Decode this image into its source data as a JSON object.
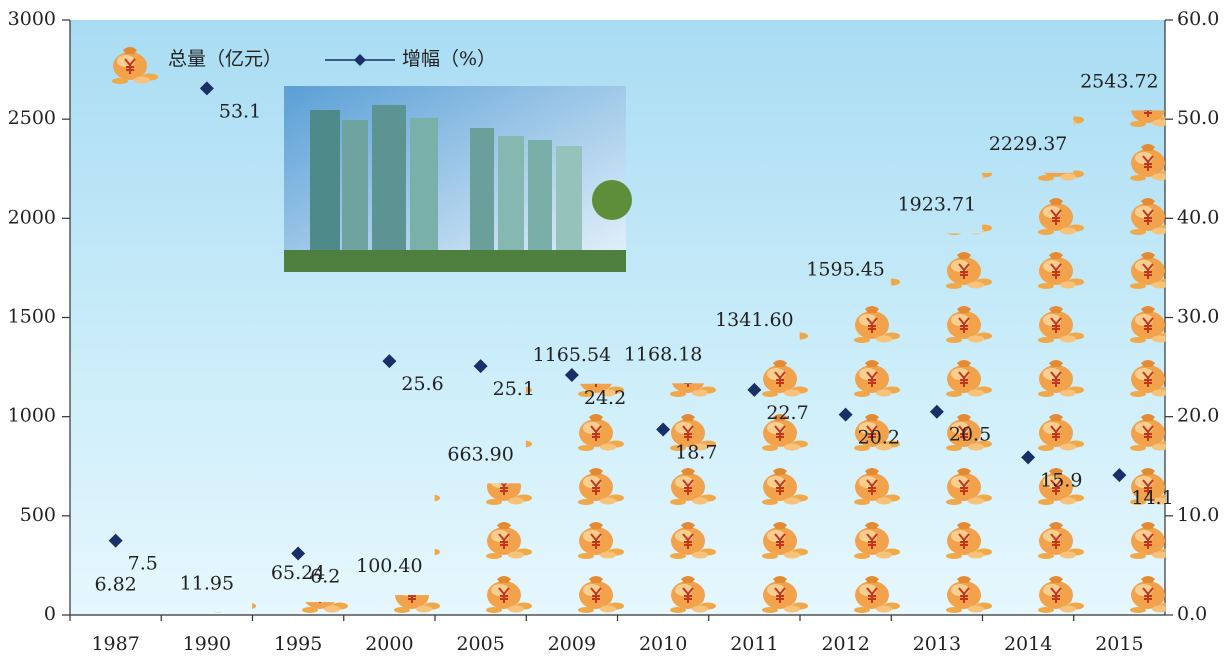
{
  "chart_data": {
    "type": "bar-line",
    "categories": [
      "1987",
      "1990",
      "1995",
      "2000",
      "2005",
      "2009",
      "2010",
      "2011",
      "2012",
      "2013",
      "2014",
      "2015"
    ],
    "series": [
      {
        "name": "总量（亿元）",
        "type": "pictorial-bar",
        "color": "#f0a848",
        "values": [
          6.82,
          11.95,
          65.24,
          100.4,
          663.9,
          1165.54,
          1168.18,
          1341.6,
          1595.45,
          1923.71,
          2229.37,
          2543.72
        ],
        "value_labels": [
          "6.82",
          "11.95",
          "65.24",
          "100.40",
          "663.90",
          "1165.54",
          "1168.18",
          "1341.60",
          "1595.45",
          "1923.71",
          "2229.37",
          "2543.72"
        ]
      },
      {
        "name": "增幅（%）",
        "type": "line",
        "color": "#1a2f66",
        "axis": "y2",
        "values": [
          7.5,
          53.1,
          6.2,
          25.6,
          25.1,
          24.2,
          18.7,
          22.7,
          20.2,
          20.5,
          15.9,
          14.1
        ]
      }
    ],
    "ylim": [
      0,
      3000
    ],
    "yticks": [
      0,
      500,
      1000,
      1500,
      2000,
      2500,
      3000
    ],
    "y2lim": [
      0,
      60
    ],
    "y2ticks": [
      {
        "value": 0,
        "label": "0.0"
      },
      {
        "value": 10,
        "label": "10.0"
      },
      {
        "value": 20,
        "label": "20.0"
      },
      {
        "value": 30,
        "label": "30.0"
      },
      {
        "value": 40,
        "label": "40.0"
      },
      {
        "value": 50,
        "label": "50.0"
      },
      {
        "value": 60,
        "label": "60.0"
      }
    ]
  }
}
